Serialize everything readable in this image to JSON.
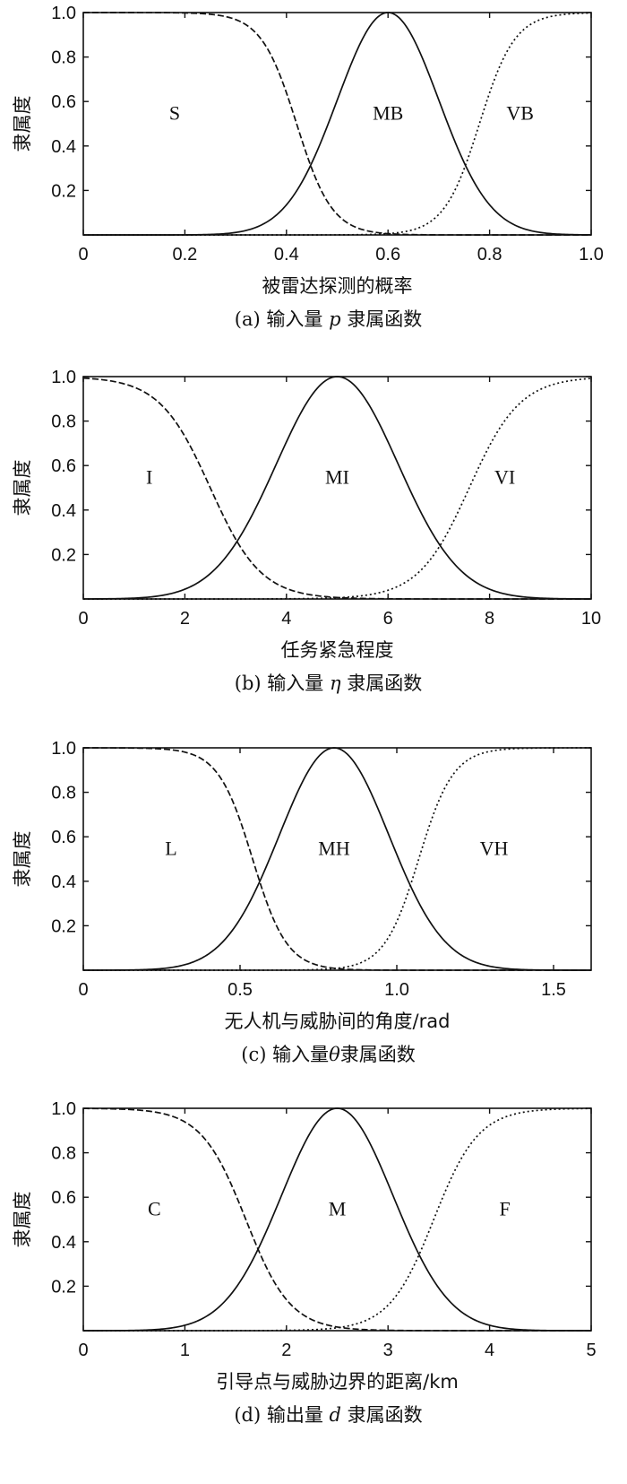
{
  "chart_data": [
    {
      "type": "line",
      "xlabel": "被雷达探测的概率",
      "ylabel": "隶属度",
      "caption": "(a) 输入量 p 隶属函数",
      "caption_parts": [
        "(a) 输入量 ",
        "p",
        " 隶属函数"
      ],
      "xlim": [
        0,
        1.0
      ],
      "ylim": [
        0,
        1.0
      ],
      "xticks": [
        0,
        0.2,
        0.4,
        0.6,
        0.8,
        1.0
      ],
      "xtick_labels": [
        "0",
        "0.2",
        "0.4",
        "0.6",
        "0.8",
        "1.0"
      ],
      "yticks": [
        0.2,
        0.4,
        0.6,
        0.8,
        1.0
      ],
      "ytick_labels": [
        "0.2",
        "0.4",
        "0.6",
        "0.8",
        "1.0"
      ],
      "series": [
        {
          "name": "S",
          "shape": "z",
          "center": 0.42,
          "sigma": 0.035,
          "style": "dashed",
          "label_at": [
            0.18,
            0.55
          ]
        },
        {
          "name": "MB",
          "shape": "gauss",
          "center": 0.6,
          "sigma": 0.1,
          "style": "solid",
          "label_at": [
            0.6,
            0.55
          ]
        },
        {
          "name": "VB",
          "shape": "s",
          "center": 0.78,
          "sigma": 0.035,
          "style": "dotted",
          "label_at": [
            0.86,
            0.55
          ]
        }
      ]
    },
    {
      "type": "line",
      "xlabel": "任务紧急程度",
      "ylabel": "隶属度",
      "caption": "(b) 输入量 η 隶属函数",
      "caption_parts": [
        "(b) 输入量 ",
        "η",
        " 隶属函数"
      ],
      "xlim": [
        0,
        10
      ],
      "ylim": [
        0,
        1.0
      ],
      "xticks": [
        0,
        2,
        4,
        6,
        8,
        10
      ],
      "xtick_labels": [
        "0",
        "2",
        "4",
        "6",
        "8",
        "10"
      ],
      "yticks": [
        0.2,
        0.4,
        0.6,
        0.8,
        1.0
      ],
      "ytick_labels": [
        "0.2",
        "0.4",
        "0.6",
        "0.8",
        "1.0"
      ],
      "series": [
        {
          "name": "I",
          "shape": "z",
          "center": 2.5,
          "sigma": 0.5,
          "style": "dashed",
          "label_at": [
            1.3,
            0.55
          ]
        },
        {
          "name": "MI",
          "shape": "gauss",
          "center": 5.0,
          "sigma": 1.2,
          "style": "solid",
          "label_at": [
            5.0,
            0.55
          ]
        },
        {
          "name": "VI",
          "shape": "s",
          "center": 7.6,
          "sigma": 0.5,
          "style": "dotted",
          "label_at": [
            8.3,
            0.55
          ]
        }
      ]
    },
    {
      "type": "line",
      "xlabel": "无人机与威胁间的角度/rad",
      "ylabel": "隶属度",
      "caption": "(c) 输入量θ隶属函数",
      "caption_parts": [
        "(c) 输入量",
        "θ",
        "隶属函数"
      ],
      "xlim": [
        0,
        1.62
      ],
      "ylim": [
        0,
        1.0
      ],
      "xticks": [
        0,
        0.5,
        1.0,
        1.5
      ],
      "xtick_labels": [
        "0",
        "0.5",
        "1.0",
        "1.5"
      ],
      "yticks": [
        0.2,
        0.4,
        0.6,
        0.8,
        1.0
      ],
      "ytick_labels": [
        "0.2",
        "0.4",
        "0.6",
        "0.8",
        "1.0"
      ],
      "series": [
        {
          "name": "L",
          "shape": "z",
          "center": 0.54,
          "sigma": 0.055,
          "style": "dashed",
          "label_at": [
            0.28,
            0.55
          ]
        },
        {
          "name": "MH",
          "shape": "gauss",
          "center": 0.8,
          "sigma": 0.175,
          "style": "solid",
          "label_at": [
            0.8,
            0.55
          ]
        },
        {
          "name": "VH",
          "shape": "s",
          "center": 1.07,
          "sigma": 0.055,
          "style": "dotted",
          "label_at": [
            1.31,
            0.55
          ]
        }
      ]
    },
    {
      "type": "line",
      "xlabel": "引导点与威胁边界的距离/km",
      "ylabel": "隶属度",
      "caption": "(d) 输出量 d 隶属函数",
      "caption_parts": [
        "(d) 输出量 ",
        "d",
        " 隶属函数"
      ],
      "xlim": [
        0,
        5
      ],
      "ylim": [
        0,
        1.0
      ],
      "xticks": [
        0,
        1,
        2,
        3,
        4,
        5
      ],
      "xtick_labels": [
        "0",
        "1",
        "2",
        "3",
        "4",
        "5"
      ],
      "yticks": [
        0.2,
        0.4,
        0.6,
        0.8,
        1.0
      ],
      "ytick_labels": [
        "0.2",
        "0.4",
        "0.6",
        "0.8",
        "1.0"
      ],
      "series": [
        {
          "name": "C",
          "shape": "z",
          "center": 1.6,
          "sigma": 0.22,
          "style": "dashed",
          "label_at": [
            0.7,
            0.55
          ]
        },
        {
          "name": "M",
          "shape": "gauss",
          "center": 2.5,
          "sigma": 0.55,
          "style": "solid",
          "label_at": [
            2.5,
            0.55
          ]
        },
        {
          "name": "F",
          "shape": "s",
          "center": 3.45,
          "sigma": 0.22,
          "style": "dotted",
          "label_at": [
            4.15,
            0.55
          ]
        }
      ]
    }
  ]
}
